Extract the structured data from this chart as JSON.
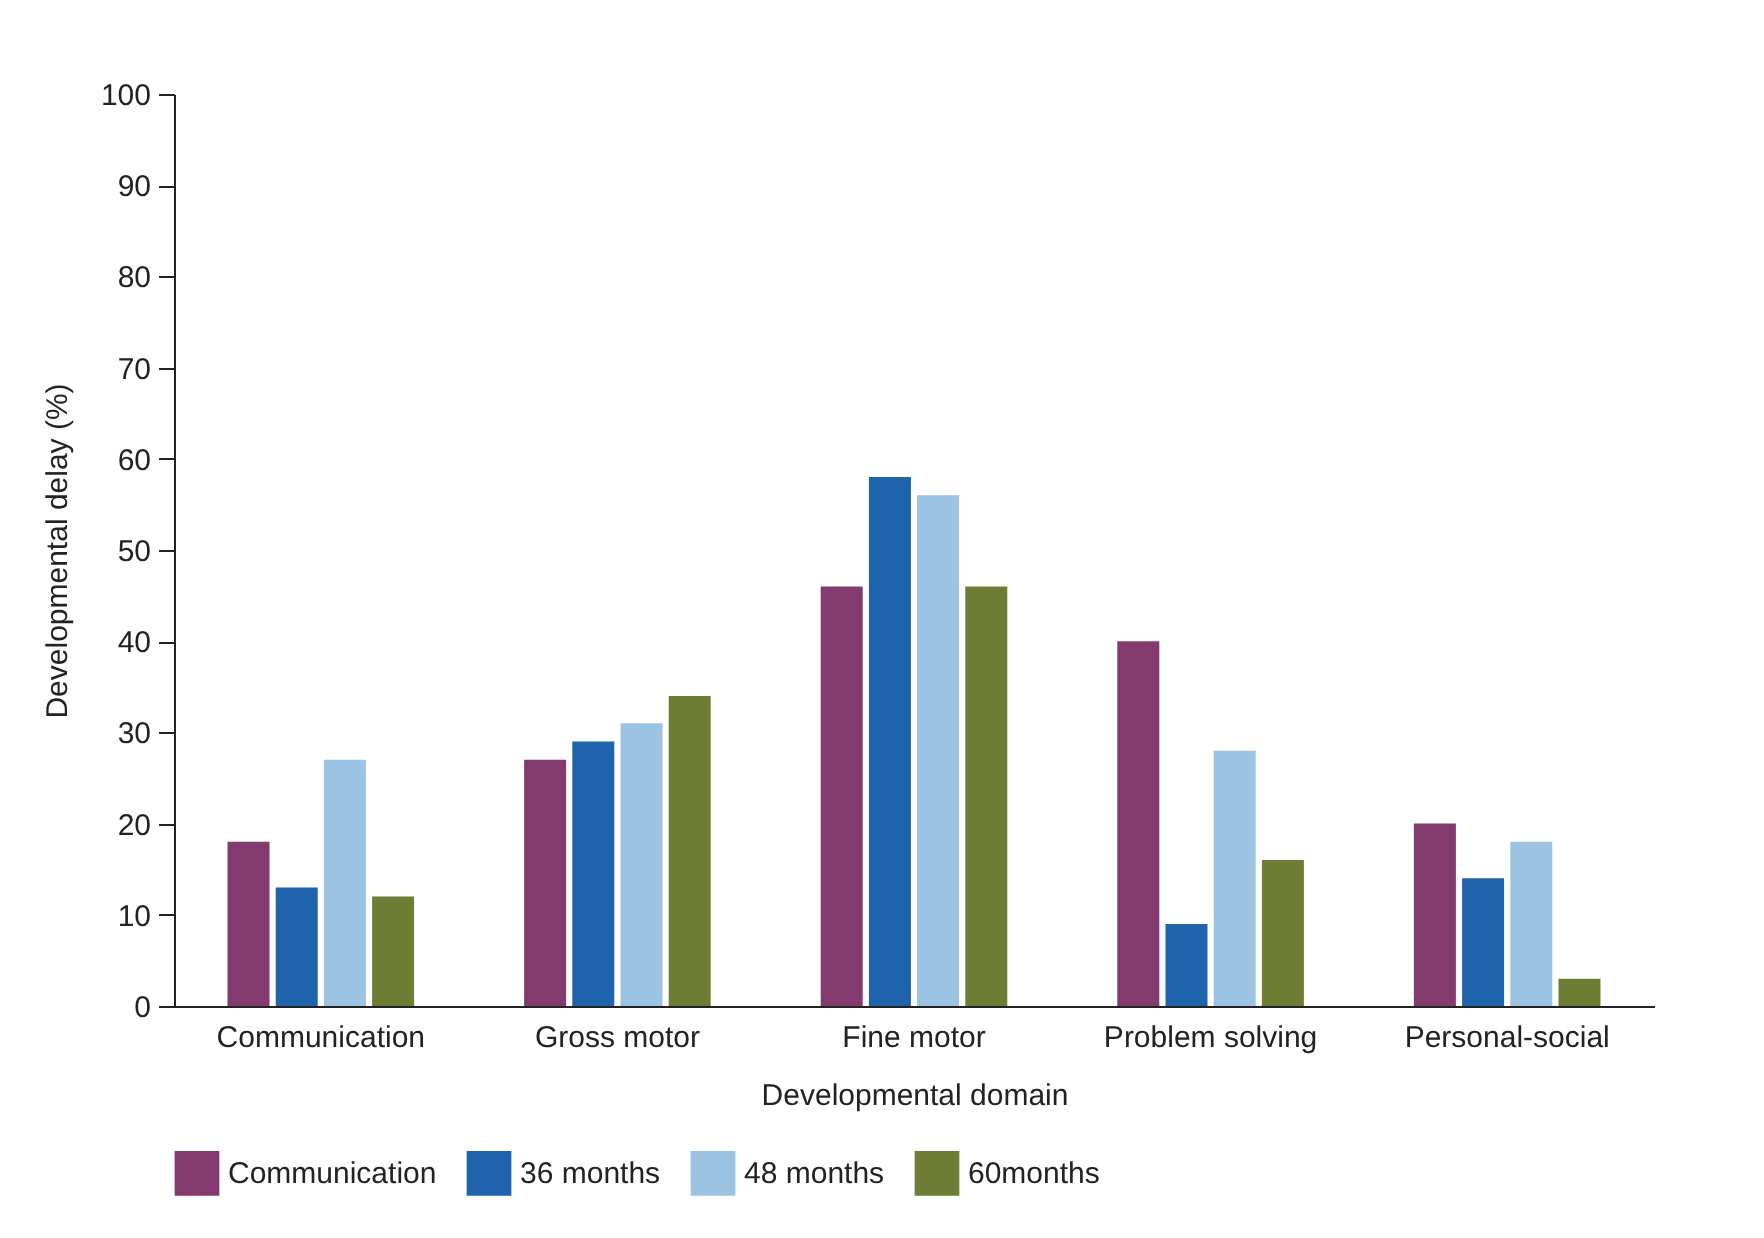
{
  "chart_data": {
    "type": "bar",
    "xlabel": "Developmental domain",
    "ylabel": "Developmental delay (%)",
    "categories": [
      "Communication",
      "Gross motor",
      "Fine motor",
      "Problem solving",
      "Personal-social"
    ],
    "series": [
      {
        "name": "Communication",
        "color": "#833a6e",
        "values": [
          18,
          27,
          46,
          40,
          20
        ]
      },
      {
        "name": "36 months",
        "color": "#1f63ad",
        "values": [
          13,
          29,
          58,
          9,
          14
        ]
      },
      {
        "name": "48 months",
        "color": "#9dc3e3",
        "values": [
          27,
          31,
          56,
          28,
          18
        ]
      },
      {
        "name": "60months",
        "color": "#6e7d34",
        "values": [
          12,
          34,
          46,
          16,
          3
        ]
      }
    ],
    "ylim": [
      0,
      100
    ],
    "yticks": [
      0,
      10,
      20,
      30,
      40,
      50,
      60,
      70,
      80,
      90,
      100
    ],
    "grid": false,
    "legend": "bottom"
  }
}
